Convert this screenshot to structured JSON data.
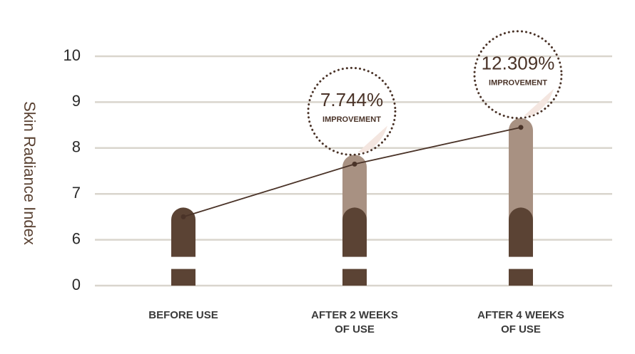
{
  "chart_data": {
    "type": "bar-line",
    "y_label": "Skin Radiance Index",
    "categories": [
      "BEFORE USE",
      "AFTER 2 WEEKS OF USE",
      "AFTER 4 WEEKS OF USE"
    ],
    "values": [
      6.5,
      7.65,
      8.45
    ],
    "colors": {
      "bar": "#a89182",
      "base": "#5b4334",
      "line": "#4a3328"
    },
    "ylim": [
      0,
      10
    ],
    "y_break": [
      0,
      6
    ],
    "yticks": [
      0,
      6,
      7,
      8,
      9,
      10
    ],
    "grid": true,
    "annotations": [
      {
        "label": "7.744%",
        "note": "IMPROVEMENT"
      },
      {
        "label": "12.309%",
        "note": "IMPROVEMENT"
      }
    ]
  }
}
